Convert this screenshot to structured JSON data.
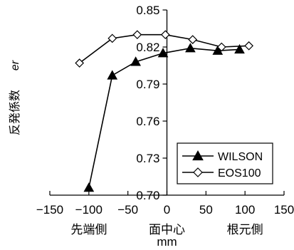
{
  "chart_data": {
    "type": "line",
    "xlim": [
      -150,
      150
    ],
    "ylim": [
      0.7,
      0.85
    ],
    "x_ticks": [
      -150,
      -100,
      -50,
      0,
      50,
      100,
      150
    ],
    "x_tick_labels": [
      "−150",
      "−100",
      "−50",
      "0",
      "50",
      "100",
      "150"
    ],
    "y_ticks": [
      0.7,
      0.73,
      0.76,
      0.79,
      0.82,
      0.85
    ],
    "y_tick_labels": [
      "0.70",
      "0.73",
      "0.76",
      "0.79",
      "0.82",
      "0.85"
    ],
    "ylabel": "反発係数",
    "ylabel_symbol": "er",
    "xlabel": "mm",
    "position_labels": [
      {
        "x": -100,
        "text": "先端側"
      },
      {
        "x": 0,
        "text": "面中心"
      },
      {
        "x": 100,
        "text": "根元側"
      }
    ],
    "grid": false,
    "legend": "bottom-right",
    "series": [
      {
        "name": "WILSON",
        "marker": "filled-triangle",
        "x": [
          -100,
          -70,
          -40,
          -5,
          30,
          65,
          93
        ],
        "y": [
          0.706,
          0.797,
          0.808,
          0.815,
          0.819,
          0.817,
          0.818
        ]
      },
      {
        "name": "EOS100",
        "marker": "open-diamond",
        "x": [
          -112,
          -70,
          -38,
          -2,
          33,
          70,
          105
        ],
        "y": [
          0.807,
          0.827,
          0.83,
          0.83,
          0.826,
          0.82,
          0.821
        ]
      }
    ]
  }
}
